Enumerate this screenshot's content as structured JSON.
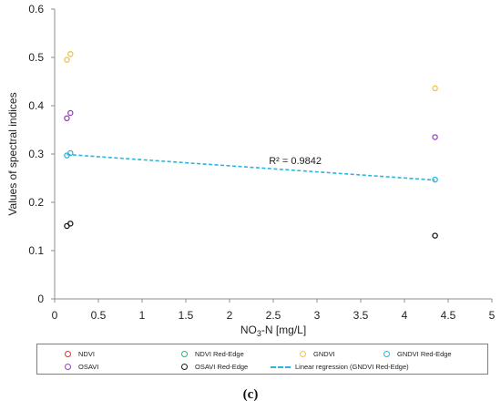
{
  "chart_data": {
    "type": "scatter",
    "xlabel_main": "NO",
    "xlabel_sub": "3",
    "xlabel_rest": "-N [mg/L]",
    "ylabel": "Values of spectral indices",
    "xlim": [
      0,
      5
    ],
    "ylim": [
      0,
      0.6
    ],
    "xticks": [
      "0",
      "0.5",
      "1",
      "1.5",
      "2",
      "2.5",
      "3",
      "3.5",
      "4",
      "4.5",
      "5"
    ],
    "yticks": [
      "0",
      "0.1",
      "0.2",
      "0.3",
      "0.4",
      "0.5",
      "0.6"
    ],
    "grid": false,
    "series": [
      {
        "name": "NDVI",
        "color": "#e8302a",
        "points": []
      },
      {
        "name": "NDVI Red-Edge",
        "color": "#2bb673",
        "points": []
      },
      {
        "name": "GNDVI",
        "color": "#f5c243",
        "points": [
          [
            0.14,
            0.495
          ],
          [
            0.18,
            0.507
          ],
          [
            4.35,
            0.436
          ]
        ]
      },
      {
        "name": "GNDVI Red-Edge",
        "color": "#29b6e0",
        "points": [
          [
            0.14,
            0.297
          ],
          [
            0.18,
            0.302
          ],
          [
            4.35,
            0.247
          ]
        ]
      },
      {
        "name": "OSAVI",
        "color": "#9b3fbf",
        "points": [
          [
            0.14,
            0.374
          ],
          [
            0.18,
            0.385
          ],
          [
            4.35,
            0.335
          ]
        ]
      },
      {
        "name": "OSAVI Red-Edge",
        "color": "#1a1a1a",
        "points": [
          [
            0.14,
            0.151
          ],
          [
            0.18,
            0.156
          ],
          [
            4.35,
            0.131
          ]
        ]
      }
    ],
    "regression": {
      "name": "Linear regression (GNDVI Red-Edge)",
      "color": "#29b6e0",
      "x": [
        0.14,
        4.35
      ],
      "y": [
        0.299,
        0.246
      ],
      "annotation": "R² = 0.9842",
      "annotation_anchor": [
        2.45,
        0.279
      ]
    }
  },
  "legend": {
    "items": [
      {
        "label": "NDVI",
        "color": "#e8302a",
        "kind": "marker"
      },
      {
        "label": "NDVI Red-Edge",
        "color": "#2bb673",
        "kind": "marker"
      },
      {
        "label": "GNDVI",
        "color": "#f5c243",
        "kind": "marker"
      },
      {
        "label": "GNDVI Red-Edge",
        "color": "#29b6e0",
        "kind": "marker"
      },
      {
        "label": "OSAVI",
        "color": "#9b3fbf",
        "kind": "marker"
      },
      {
        "label": "OSAVI Red-Edge",
        "color": "#1a1a1a",
        "kind": "marker"
      },
      {
        "label": "Linear regression (GNDVI Red-Edge)",
        "color": "#29b6e0",
        "kind": "dash"
      }
    ]
  },
  "caption": "(c)"
}
